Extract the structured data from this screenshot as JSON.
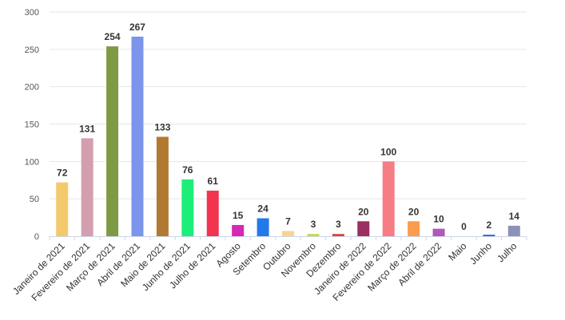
{
  "chart_data": {
    "type": "bar",
    "categories": [
      "Janeiro de 2021",
      "Fevereiro de 2021",
      "Março de 2021",
      "Abril de 2021",
      "Maio de 2021",
      "Junho de 2021",
      "Julho de 2021",
      "Agosto",
      "Setembro",
      "Outubro",
      "Novembro",
      "Dezembro",
      "Janeiro de 2022",
      "Fevereiro de 2022",
      "Março de 2022",
      "Abril de 2022",
      "Maio",
      "Junho",
      "Julho"
    ],
    "values": [
      72,
      131,
      254,
      267,
      133,
      76,
      61,
      15,
      24,
      7,
      3,
      3,
      20,
      100,
      20,
      10,
      0,
      2,
      14
    ],
    "colors": [
      "#f3ca6b",
      "#d39fae",
      "#7e9b44",
      "#7c95eb",
      "#b27a31",
      "#1cee7a",
      "#f2344f",
      "#d428b5",
      "#2479ea",
      "#f7d58d",
      "#c4da3f",
      "#d9463a",
      "#9b2f61",
      "#f67c86",
      "#fa9c4c",
      "#b158b8",
      "#cfc0a7",
      "#2d6ac5",
      "#8c91b7"
    ],
    "title": "",
    "xlabel": "",
    "ylabel": "",
    "ylim": [
      0,
      300
    ],
    "yticks": [
      "0",
      "50",
      "100",
      "150",
      "200",
      "250",
      "300"
    ],
    "grid": true,
    "data_labels": true
  }
}
